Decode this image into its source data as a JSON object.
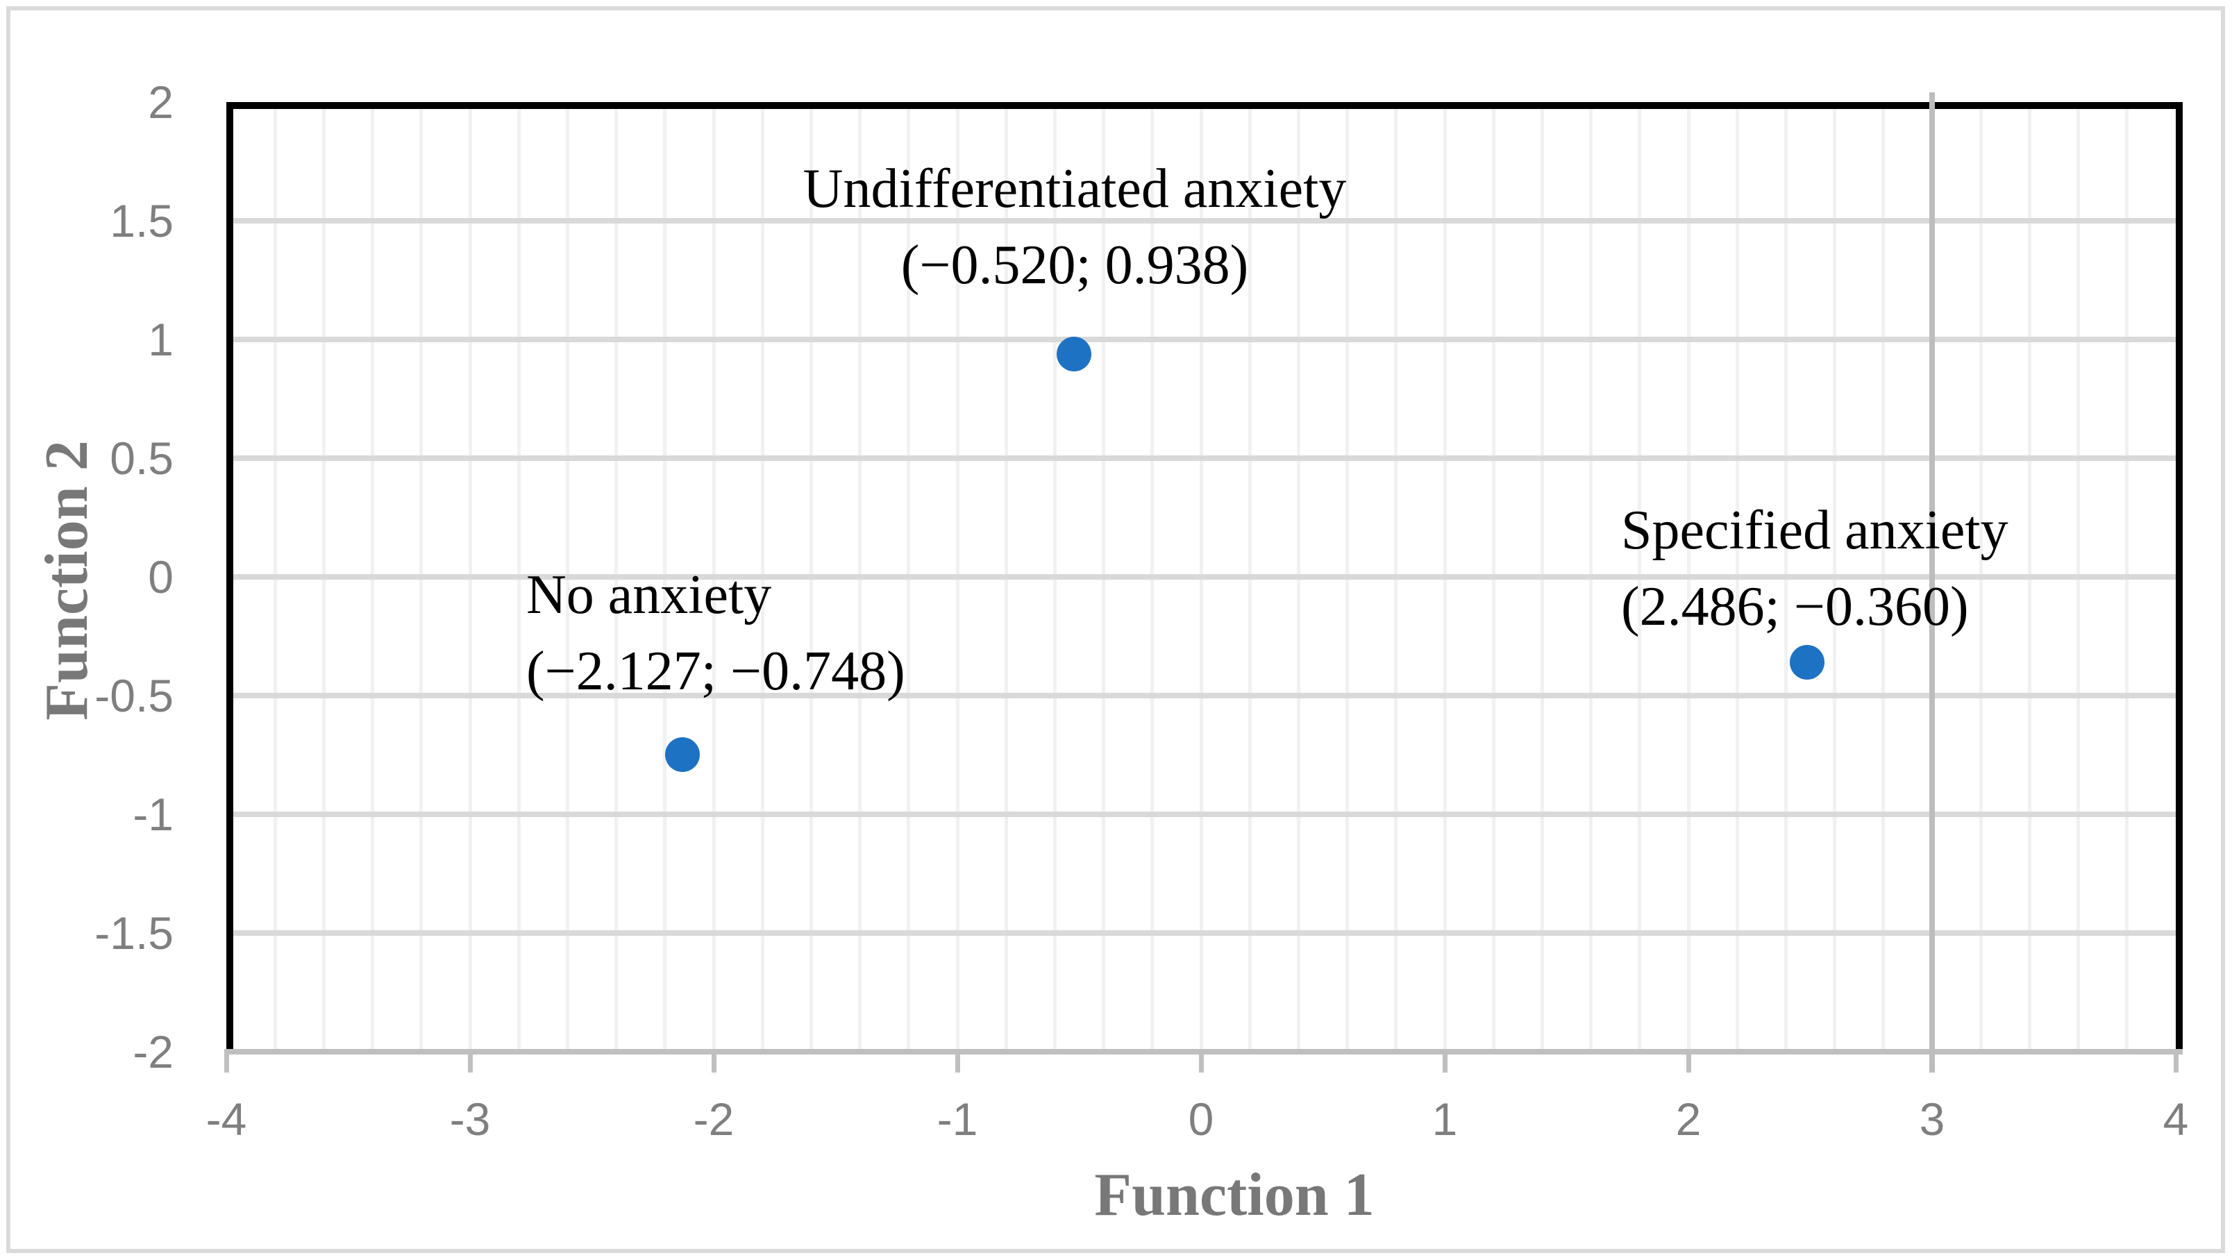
{
  "chart_data": {
    "type": "scatter",
    "title": "",
    "xlabel": "Function 1",
    "ylabel": "Function 2",
    "xlim": [
      -4,
      4
    ],
    "ylim": [
      -2,
      2
    ],
    "x_tick_labels": [
      "-4",
      "-3",
      "-2",
      "-1",
      "0",
      "1",
      "2",
      "3",
      "4"
    ],
    "y_tick_labels": [
      "2",
      "1.5",
      "1",
      "0.5",
      "0",
      "-0.5",
      "-1",
      "-1.5",
      "-2"
    ],
    "x_minor_gridline_step": 0.2,
    "y_major_gridline_step": 0.5,
    "grid": true,
    "legend_position": "none",
    "highlighted_vertical_line_x": 3,
    "marker_color": "#1e72c3",
    "colors": {
      "plot_border": "#000000",
      "x_axis_line": "#bfbfbf",
      "minor_vertical_gridline": "#f1f1f1",
      "major_horizontal_gridline": "#d9d9d9",
      "highlighted_vertical_line": "#bdbdbd",
      "tick_label_text": "#7f7f7f",
      "axis_title_text": "#787878",
      "data_label_text": "#000000",
      "figure_border": "#dadada"
    },
    "points": [
      {
        "name": "Undifferentiated anxiety",
        "x": -0.52,
        "y": 0.938,
        "label_line1": "Undifferentiated anxiety",
        "label_line2": "(−0.520; 0.938)"
      },
      {
        "name": "No anxiety",
        "x": -2.127,
        "y": -0.748,
        "label_line1": "No anxiety",
        "label_line2": "(−2.127; −0.748)"
      },
      {
        "name": "Specified anxiety",
        "x": 2.486,
        "y": -0.36,
        "label_line1": "Specified anxiety",
        "label_line2": "(2.486; −0.360)"
      }
    ]
  }
}
